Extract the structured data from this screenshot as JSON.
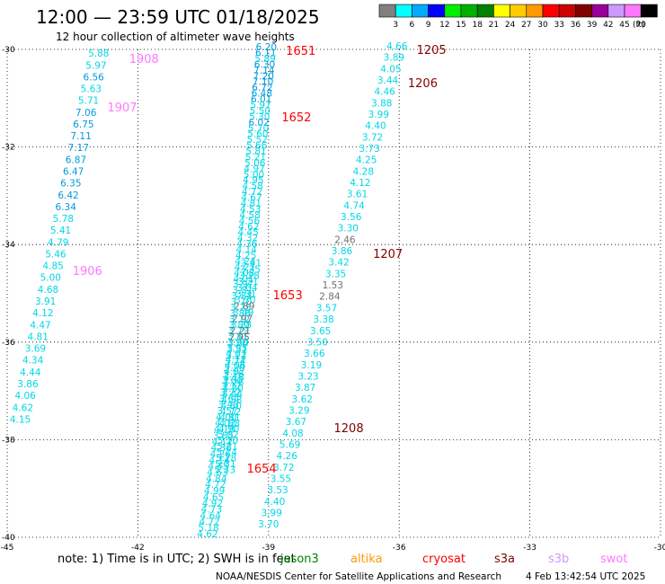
{
  "header": {
    "title": "12:00 — 23:59 UTC 01/18/2025",
    "subtitle": "12 hour collection of altimeter wave heights"
  },
  "legend": {
    "bins": [
      "3",
      "6",
      "9",
      "12",
      "15",
      "18",
      "21",
      "24",
      "27",
      "30",
      "33",
      "36",
      "39",
      "42",
      "45",
      "70"
    ],
    "unit": "(ft)",
    "colors": [
      "#808080",
      "#00ffff",
      "#00aaff",
      "#0000ff",
      "#00ee00",
      "#00b000",
      "#008000",
      "#ffff00",
      "#ffcc00",
      "#ff9900",
      "#ff0000",
      "#cc0000",
      "#800000",
      "#990099",
      "#cc99ff",
      "#ff77ff",
      "#000000"
    ]
  },
  "footer": {
    "note": "note:  1) Time is in UTC;  2) SWH is in feet",
    "satellites": [
      {
        "name": "jason3",
        "color": "#008000"
      },
      {
        "name": "altika",
        "color": "#ff9900"
      },
      {
        "name": "cryosat",
        "color": "#ff0000"
      },
      {
        "name": "s3a",
        "color": "#800000"
      },
      {
        "name": "s3b",
        "color": "#cc99ff"
      },
      {
        "name": "swot",
        "color": "#ff77ff"
      }
    ],
    "credit": "NOAA/NESDIS Center for Satellite Applications and Research",
    "timestamp": "4 Feb 13:42:54 UTC 2025"
  },
  "chart_data": {
    "type": "scatter",
    "xlim": [
      -45,
      -30
    ],
    "ylim": [
      -40,
      -30
    ],
    "x_ticks": [
      "-45",
      "-42",
      "-39",
      "-36",
      "-33",
      "-30"
    ],
    "y_ticks": [
      "-30",
      "-32",
      "-34",
      "-36",
      "-38",
      "-40"
    ],
    "grid": true,
    "time_labels": [
      {
        "text": "1908",
        "color": "#ff77ff",
        "lon": -42.2,
        "lat": -30.18
      },
      {
        "text": "1907",
        "color": "#ff77ff",
        "lon": -42.7,
        "lat": -31.18
      },
      {
        "text": "1906",
        "color": "#ff77ff",
        "lon": -43.5,
        "lat": -34.53
      },
      {
        "text": "1651",
        "color": "#ff0000",
        "lon": -38.6,
        "lat": -30.02
      },
      {
        "text": "1652",
        "color": "#ff0000",
        "lon": -38.7,
        "lat": -31.38
      },
      {
        "text": "1653",
        "color": "#ff0000",
        "lon": -38.9,
        "lat": -35.03
      },
      {
        "text": "1654",
        "color": "#ff0000",
        "lon": -39.5,
        "lat": -38.58
      },
      {
        "text": "1205",
        "color": "#800000",
        "lon": -35.6,
        "lat": -30.0
      },
      {
        "text": "1206",
        "color": "#800000",
        "lon": -35.8,
        "lat": -30.68
      },
      {
        "text": "1207",
        "color": "#800000",
        "lon": -36.6,
        "lat": -34.18
      },
      {
        "text": "1208",
        "color": "#800000",
        "lon": -37.5,
        "lat": -37.75
      }
    ],
    "series": [
      {
        "name": "1906–1908",
        "start": [
          -42.9,
          -30.15
        ],
        "end": [
          -44.7,
          -37.65
        ],
        "values": [
          "5.88",
          "5.97",
          "6.56",
          "5.63",
          "5.71",
          "7.06",
          "6.75",
          "7.11",
          "7.17",
          "6.87",
          "6.47",
          "6.35",
          "6.42",
          "6.34",
          "5.78",
          "5.41",
          "4.79",
          "5.46",
          "4.85",
          "5.00",
          "4.68",
          "3.91",
          "4.12",
          "4.47",
          "4.81",
          "3.69",
          "4.34",
          "4.44",
          "3.86",
          "4.06",
          "4.62",
          "4.15"
        ]
      },
      {
        "name": "1651–1652",
        "start": [
          -39.05,
          -30.02
        ],
        "end": [
          -40.0,
          -38.68
        ],
        "values": [
          "6.20",
          "6.11",
          "5.89",
          "6.30",
          "7.14",
          "7.20",
          "7.10",
          "6.72",
          "6.48",
          "6.01",
          "5.97",
          "5.50",
          "5.30",
          "6.02",
          "5.70",
          "5.60",
          "5.52",
          "5.66",
          "5.81",
          "5.21",
          "5.06",
          "4.97",
          "5.00",
          "4.95",
          "4.58",
          "4.72",
          "4.67",
          "4.81",
          "4.53",
          "4.58",
          "4.56",
          "4.62",
          "4.45",
          "4.32",
          "4.36",
          "4.14",
          "4.25",
          "4.24",
          "4.21",
          "4.08",
          "4.01",
          "3.97",
          "3.81",
          "3.84",
          "3.70",
          "3.75",
          "3.88",
          "3.72",
          "3.80",
          "3.79",
          "3.81",
          "3.90",
          "3.95",
          "4.01",
          "4.12",
          "4.06",
          "4.02",
          "4.18",
          "4.26",
          "4.30",
          "4.44",
          "4.53",
          "4.60",
          "4.72",
          "4.81",
          "4.88",
          "4.90",
          "5.02",
          "5.10",
          "5.21",
          "5.24",
          "5.28",
          "5.31",
          "5.33"
        ]
      },
      {
        "name": "1653–1654",
        "start": [
          -39.4,
          -34.45
        ],
        "end": [
          -40.4,
          -40.0
        ],
        "values": [
          "3.41",
          "3.35",
          "3.28",
          "3.21",
          "3.04",
          "3.31",
          "3.30",
          "2.89",
          "3.49",
          "2.97",
          "3.28",
          "2.21",
          "2.95",
          "3.60",
          "3.51",
          "3.12",
          "3.74",
          "3.20",
          "3.26",
          "3.00",
          "3.12",
          "3.22",
          "3.64",
          "3.48",
          "3.57",
          "4.00",
          "4.02",
          "4.18",
          "3.85",
          "4.12",
          "4.36",
          "4.26",
          "4.14",
          "4.45",
          "4.63",
          "4.84",
          "4.72",
          "4.99",
          "4.65",
          "4.92",
          "4.73",
          "4.64",
          "4.72",
          "5.18",
          "4.62"
        ]
      },
      {
        "name": "1205–1208",
        "start": [
          -36.05,
          -30.0
        ],
        "end": [
          -39.0,
          -39.8
        ],
        "values": [
          "4.66",
          "3.89",
          "4.05",
          "3.44",
          "4.46",
          "3.88",
          "3.99",
          "4.40",
          "3.72",
          "3.73",
          "4.25",
          "4.28",
          "4.12",
          "3.61",
          "4.74",
          "3.56",
          "3.30",
          "2.46",
          "3.86",
          "3.42",
          "3.35",
          "1.53",
          "2.84",
          "3.57",
          "3.38",
          "3.65",
          "3.50",
          "3.66",
          "3.19",
          "3.23",
          "3.87",
          "3.62",
          "3.29",
          "3.67",
          "4.08",
          "5.69",
          "4.26",
          "3.72",
          "3.55",
          "3.53",
          "4.40",
          "3.99",
          "3.70"
        ]
      }
    ]
  }
}
